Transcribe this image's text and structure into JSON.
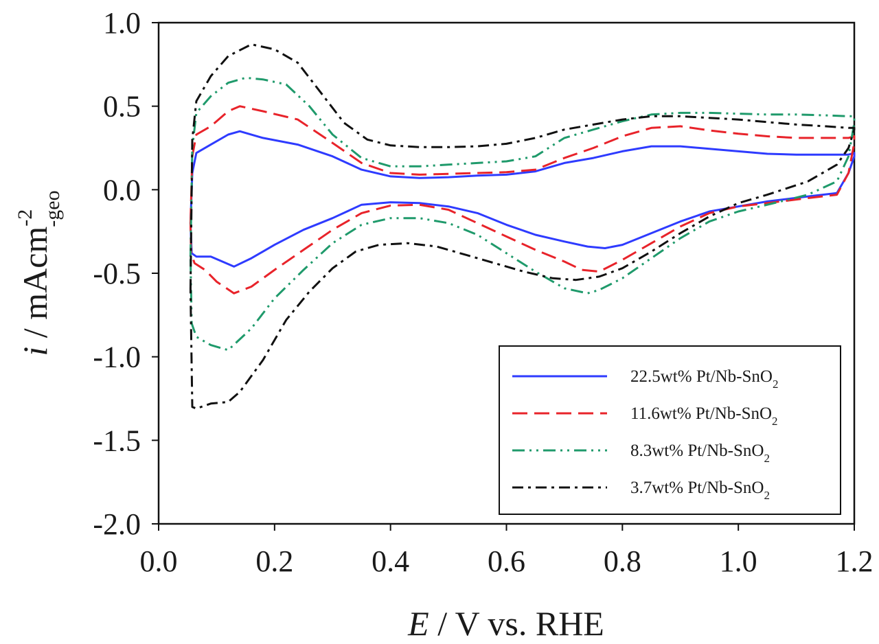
{
  "chart_data": {
    "type": "line",
    "title": "",
    "xlabel": {
      "italic": "E",
      "rest": " / V vs. RHE"
    },
    "ylabel": {
      "italic": "i",
      "rest": " / mAcm",
      "sup": "-2",
      "sub": "-geo"
    },
    "xlim": [
      0.0,
      1.2
    ],
    "ylim": [
      -2.0,
      1.0
    ],
    "xticks": [
      "0.0",
      "0.2",
      "0.4",
      "0.6",
      "0.8",
      "1.0",
      "1.2"
    ],
    "yticks": [
      "1.0",
      "0.5",
      "0.0",
      "-0.5",
      "-1.0",
      "-1.5",
      "-2.0"
    ],
    "legend_position": "bottom-right",
    "grid": false,
    "series": [
      {
        "name": "22.5wt% Pt/Nb-SnO",
        "name_sub": "2",
        "color": "#2e3bff",
        "dash": "solid",
        "anodic": [
          [
            0.055,
            -0.2
          ],
          [
            0.058,
            0.1
          ],
          [
            0.065,
            0.22
          ],
          [
            0.09,
            0.27
          ],
          [
            0.12,
            0.33
          ],
          [
            0.14,
            0.35
          ],
          [
            0.18,
            0.31
          ],
          [
            0.24,
            0.27
          ],
          [
            0.3,
            0.2
          ],
          [
            0.35,
            0.12
          ],
          [
            0.4,
            0.08
          ],
          [
            0.45,
            0.07
          ],
          [
            0.5,
            0.075
          ],
          [
            0.55,
            0.085
          ],
          [
            0.6,
            0.09
          ],
          [
            0.65,
            0.11
          ],
          [
            0.7,
            0.16
          ],
          [
            0.75,
            0.19
          ],
          [
            0.8,
            0.23
          ],
          [
            0.85,
            0.26
          ],
          [
            0.9,
            0.26
          ],
          [
            0.95,
            0.245
          ],
          [
            1.0,
            0.23
          ],
          [
            1.05,
            0.215
          ],
          [
            1.1,
            0.21
          ],
          [
            1.15,
            0.21
          ],
          [
            1.19,
            0.21
          ],
          [
            1.2,
            0.22
          ]
        ],
        "cathodic": [
          [
            1.2,
            0.2
          ],
          [
            1.19,
            0.1
          ],
          [
            1.17,
            -0.02
          ],
          [
            1.12,
            -0.04
          ],
          [
            1.05,
            -0.07
          ],
          [
            1.0,
            -0.1
          ],
          [
            0.95,
            -0.13
          ],
          [
            0.9,
            -0.19
          ],
          [
            0.85,
            -0.26
          ],
          [
            0.8,
            -0.33
          ],
          [
            0.77,
            -0.35
          ],
          [
            0.74,
            -0.34
          ],
          [
            0.7,
            -0.31
          ],
          [
            0.65,
            -0.27
          ],
          [
            0.6,
            -0.21
          ],
          [
            0.55,
            -0.14
          ],
          [
            0.5,
            -0.1
          ],
          [
            0.45,
            -0.08
          ],
          [
            0.4,
            -0.075
          ],
          [
            0.35,
            -0.09
          ],
          [
            0.3,
            -0.17
          ],
          [
            0.25,
            -0.24
          ],
          [
            0.2,
            -0.33
          ],
          [
            0.16,
            -0.41
          ],
          [
            0.13,
            -0.46
          ],
          [
            0.11,
            -0.43
          ],
          [
            0.09,
            -0.4
          ],
          [
            0.065,
            -0.4
          ],
          [
            0.057,
            -0.38
          ],
          [
            0.055,
            -0.2
          ]
        ]
      },
      {
        "name": "11.6wt% Pt/Nb-SnO",
        "name_sub": "2",
        "color": "#e8232a",
        "dash": "long-dash",
        "anodic": [
          [
            0.055,
            -0.2
          ],
          [
            0.058,
            0.2
          ],
          [
            0.065,
            0.33
          ],
          [
            0.09,
            0.38
          ],
          [
            0.12,
            0.47
          ],
          [
            0.14,
            0.5
          ],
          [
            0.18,
            0.47
          ],
          [
            0.24,
            0.42
          ],
          [
            0.3,
            0.28
          ],
          [
            0.35,
            0.16
          ],
          [
            0.4,
            0.1
          ],
          [
            0.45,
            0.09
          ],
          [
            0.5,
            0.095
          ],
          [
            0.55,
            0.1
          ],
          [
            0.6,
            0.105
          ],
          [
            0.65,
            0.12
          ],
          [
            0.7,
            0.19
          ],
          [
            0.75,
            0.25
          ],
          [
            0.8,
            0.32
          ],
          [
            0.85,
            0.37
          ],
          [
            0.9,
            0.38
          ],
          [
            0.95,
            0.355
          ],
          [
            1.0,
            0.335
          ],
          [
            1.05,
            0.32
          ],
          [
            1.1,
            0.31
          ],
          [
            1.15,
            0.31
          ],
          [
            1.19,
            0.31
          ],
          [
            1.2,
            0.32
          ]
        ],
        "cathodic": [
          [
            1.2,
            0.28
          ],
          [
            1.19,
            0.1
          ],
          [
            1.17,
            -0.03
          ],
          [
            1.12,
            -0.05
          ],
          [
            1.05,
            -0.08
          ],
          [
            1.0,
            -0.1
          ],
          [
            0.95,
            -0.14
          ],
          [
            0.9,
            -0.22
          ],
          [
            0.85,
            -0.32
          ],
          [
            0.8,
            -0.42
          ],
          [
            0.76,
            -0.49
          ],
          [
            0.73,
            -0.48
          ],
          [
            0.7,
            -0.43
          ],
          [
            0.65,
            -0.36
          ],
          [
            0.6,
            -0.28
          ],
          [
            0.55,
            -0.2
          ],
          [
            0.5,
            -0.12
          ],
          [
            0.45,
            -0.09
          ],
          [
            0.4,
            -0.095
          ],
          [
            0.35,
            -0.14
          ],
          [
            0.3,
            -0.24
          ],
          [
            0.25,
            -0.36
          ],
          [
            0.2,
            -0.48
          ],
          [
            0.16,
            -0.58
          ],
          [
            0.13,
            -0.62
          ],
          [
            0.1,
            -0.55
          ],
          [
            0.08,
            -0.48
          ],
          [
            0.062,
            -0.44
          ],
          [
            0.056,
            -0.38
          ],
          [
            0.055,
            -0.2
          ]
        ]
      },
      {
        "name": "8.3wt% Pt/Nb-SnO",
        "name_sub": "2",
        "color": "#1f9a6b",
        "dash": "dash-dot-dot",
        "anodic": [
          [
            0.055,
            -0.4
          ],
          [
            0.058,
            0.25
          ],
          [
            0.065,
            0.46
          ],
          [
            0.09,
            0.56
          ],
          [
            0.12,
            0.64
          ],
          [
            0.15,
            0.67
          ],
          [
            0.18,
            0.66
          ],
          [
            0.22,
            0.63
          ],
          [
            0.26,
            0.5
          ],
          [
            0.3,
            0.33
          ],
          [
            0.35,
            0.19
          ],
          [
            0.4,
            0.14
          ],
          [
            0.45,
            0.14
          ],
          [
            0.5,
            0.15
          ],
          [
            0.55,
            0.16
          ],
          [
            0.6,
            0.17
          ],
          [
            0.65,
            0.2
          ],
          [
            0.7,
            0.31
          ],
          [
            0.75,
            0.36
          ],
          [
            0.8,
            0.41
          ],
          [
            0.85,
            0.45
          ],
          [
            0.9,
            0.46
          ],
          [
            0.95,
            0.46
          ],
          [
            1.0,
            0.455
          ],
          [
            1.05,
            0.45
          ],
          [
            1.1,
            0.45
          ],
          [
            1.15,
            0.445
          ],
          [
            1.19,
            0.44
          ],
          [
            1.2,
            0.44
          ]
        ],
        "cathodic": [
          [
            1.2,
            0.4
          ],
          [
            1.19,
            0.2
          ],
          [
            1.17,
            0.05
          ],
          [
            1.12,
            -0.03
          ],
          [
            1.05,
            -0.09
          ],
          [
            1.0,
            -0.13
          ],
          [
            0.95,
            -0.19
          ],
          [
            0.9,
            -0.29
          ],
          [
            0.85,
            -0.41
          ],
          [
            0.8,
            -0.53
          ],
          [
            0.76,
            -0.6
          ],
          [
            0.74,
            -0.62
          ],
          [
            0.7,
            -0.59
          ],
          [
            0.65,
            -0.49
          ],
          [
            0.6,
            -0.38
          ],
          [
            0.55,
            -0.27
          ],
          [
            0.5,
            -0.2
          ],
          [
            0.45,
            -0.17
          ],
          [
            0.4,
            -0.17
          ],
          [
            0.35,
            -0.21
          ],
          [
            0.3,
            -0.32
          ],
          [
            0.25,
            -0.48
          ],
          [
            0.2,
            -0.65
          ],
          [
            0.16,
            -0.83
          ],
          [
            0.12,
            -0.96
          ],
          [
            0.09,
            -0.93
          ],
          [
            0.065,
            -0.88
          ],
          [
            0.057,
            -0.8
          ],
          [
            0.055,
            -0.4
          ]
        ]
      },
      {
        "name": "3.7wt% Pt/Nb-SnO",
        "name_sub": "2",
        "color": "#111111",
        "dash": "dash-dot",
        "anodic": [
          [
            0.055,
            -0.6
          ],
          [
            0.058,
            0.3
          ],
          [
            0.065,
            0.53
          ],
          [
            0.09,
            0.68
          ],
          [
            0.12,
            0.8
          ],
          [
            0.16,
            0.87
          ],
          [
            0.2,
            0.84
          ],
          [
            0.24,
            0.76
          ],
          [
            0.28,
            0.58
          ],
          [
            0.32,
            0.4
          ],
          [
            0.36,
            0.3
          ],
          [
            0.4,
            0.265
          ],
          [
            0.45,
            0.255
          ],
          [
            0.5,
            0.255
          ],
          [
            0.55,
            0.26
          ],
          [
            0.6,
            0.275
          ],
          [
            0.65,
            0.31
          ],
          [
            0.7,
            0.36
          ],
          [
            0.75,
            0.39
          ],
          [
            0.8,
            0.42
          ],
          [
            0.85,
            0.44
          ],
          [
            0.9,
            0.44
          ],
          [
            0.95,
            0.43
          ],
          [
            1.0,
            0.42
          ],
          [
            1.05,
            0.405
          ],
          [
            1.1,
            0.39
          ],
          [
            1.15,
            0.38
          ],
          [
            1.19,
            0.37
          ],
          [
            1.2,
            0.37
          ]
        ],
        "cathodic": [
          [
            1.2,
            0.36
          ],
          [
            1.19,
            0.25
          ],
          [
            1.17,
            0.15
          ],
          [
            1.12,
            0.05
          ],
          [
            1.05,
            -0.03
          ],
          [
            1.0,
            -0.08
          ],
          [
            0.95,
            -0.16
          ],
          [
            0.9,
            -0.26
          ],
          [
            0.85,
            -0.37
          ],
          [
            0.8,
            -0.47
          ],
          [
            0.76,
            -0.52
          ],
          [
            0.72,
            -0.54
          ],
          [
            0.68,
            -0.53
          ],
          [
            0.63,
            -0.49
          ],
          [
            0.58,
            -0.44
          ],
          [
            0.53,
            -0.39
          ],
          [
            0.48,
            -0.34
          ],
          [
            0.43,
            -0.32
          ],
          [
            0.38,
            -0.33
          ],
          [
            0.34,
            -0.37
          ],
          [
            0.3,
            -0.47
          ],
          [
            0.26,
            -0.61
          ],
          [
            0.22,
            -0.78
          ],
          [
            0.18,
            -1.02
          ],
          [
            0.14,
            -1.21
          ],
          [
            0.12,
            -1.27
          ],
          [
            0.09,
            -1.28
          ],
          [
            0.065,
            -1.31
          ],
          [
            0.058,
            -1.3
          ],
          [
            0.055,
            -0.6
          ]
        ]
      }
    ]
  }
}
